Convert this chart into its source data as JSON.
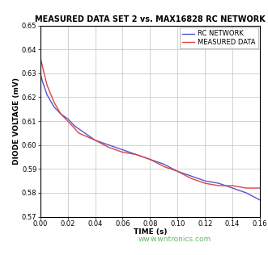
{
  "title": "MEASURED DATA SET 2 vs. MAX16828 RC NETWORK",
  "xlabel": "TIME (s)",
  "ylabel": "DIODE VOLTAGE (mV)",
  "xlim": [
    0.0,
    0.16
  ],
  "ylim": [
    0.57,
    0.65
  ],
  "xticks": [
    0.0,
    0.02,
    0.04,
    0.06,
    0.08,
    0.1,
    0.12,
    0.14,
    0.16
  ],
  "yticks": [
    0.57,
    0.58,
    0.59,
    0.6,
    0.61,
    0.62,
    0.63,
    0.64,
    0.65
  ],
  "rc_color": "#5555CC",
  "meas_color": "#DD4444",
  "legend_rc": "RC NETWORK",
  "legend_meas": "MEASURED DATA",
  "watermark": "wntronics.com",
  "rc_x": [
    0.0,
    0.002,
    0.005,
    0.01,
    0.015,
    0.02,
    0.025,
    0.03,
    0.035,
    0.04,
    0.05,
    0.06,
    0.07,
    0.08,
    0.09,
    0.1,
    0.11,
    0.12,
    0.13,
    0.14,
    0.15,
    0.16
  ],
  "rc_y": [
    0.63,
    0.626,
    0.621,
    0.616,
    0.613,
    0.611,
    0.608,
    0.606,
    0.604,
    0.602,
    0.6,
    0.598,
    0.596,
    0.594,
    0.592,
    0.589,
    0.587,
    0.585,
    0.584,
    0.582,
    0.58,
    0.577
  ],
  "meas_x": [
    0.0,
    0.002,
    0.005,
    0.01,
    0.015,
    0.02,
    0.025,
    0.028,
    0.032,
    0.036,
    0.04,
    0.05,
    0.06,
    0.07,
    0.08,
    0.09,
    0.1,
    0.11,
    0.12,
    0.13,
    0.14,
    0.15,
    0.16
  ],
  "meas_y": [
    0.637,
    0.632,
    0.625,
    0.618,
    0.613,
    0.61,
    0.607,
    0.605,
    0.604,
    0.603,
    0.602,
    0.599,
    0.597,
    0.596,
    0.594,
    0.591,
    0.589,
    0.586,
    0.584,
    0.583,
    0.583,
    0.582,
    0.582
  ],
  "title_fontsize": 7.0,
  "label_fontsize": 6.5,
  "tick_fontsize": 6.0,
  "legend_fontsize": 6.0,
  "linewidth": 1.0
}
